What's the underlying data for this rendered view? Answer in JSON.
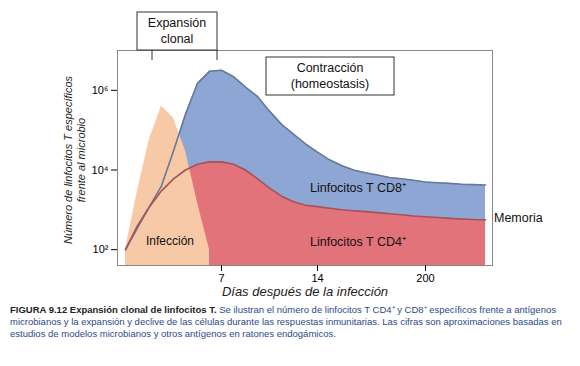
{
  "chart_data": {
    "type": "area",
    "x_label": "Días después de la infección",
    "y_label": [
      "Número de linfocitos T específicos",
      "frente al microbio"
    ],
    "categories": [
      null,
      null,
      null,
      null,
      null,
      null,
      null,
      null,
      "7",
      null,
      null,
      null,
      null,
      null,
      null,
      null,
      "14",
      null,
      null,
      null,
      null,
      null,
      null,
      null,
      null,
      "200",
      null,
      null,
      null,
      null,
      null
    ],
    "series": [
      {
        "name": "Linfocitos T CD8⁺",
        "color": "#8ea6d3",
        "values": [
          100,
          350,
          1200,
          4000,
          30000,
          250000,
          1500000,
          3000000,
          3200000,
          2200000,
          1200000,
          700000,
          300000,
          140000,
          80000,
          45000,
          28000,
          18000,
          13000,
          10000,
          8500,
          7500,
          6500,
          6000,
          5500,
          5000,
          4800,
          4600,
          4400,
          4300,
          4200
        ]
      },
      {
        "name": "Linfocitos T CD4⁺",
        "color": "#e3737a",
        "values": [
          100,
          400,
          1200,
          3000,
          6000,
          10000,
          14000,
          16000,
          16000,
          14000,
          10000,
          6000,
          3500,
          2200,
          1600,
          1300,
          1200,
          1100,
          1000,
          950,
          900,
          850,
          800,
          750,
          700,
          670,
          640,
          610,
          590,
          570,
          560
        ]
      },
      {
        "name": "Infección",
        "color": "#f7c9a6",
        "values": [
          100,
          3000,
          60000,
          400000,
          200000,
          30000,
          1500,
          100,
          null,
          null,
          null,
          null,
          null,
          null,
          null,
          null,
          null,
          null,
          null,
          null,
          null,
          null,
          null,
          null,
          null,
          null,
          null,
          null,
          null,
          null,
          null
        ]
      }
    ],
    "ylim": [
      40,
      10000000
    ],
    "yticks": [
      {
        "value": 100,
        "label": "10²"
      },
      {
        "value": 10000,
        "label": "10⁴"
      },
      {
        "value": 1000000,
        "label": "10⁶"
      }
    ],
    "log": "y",
    "grid": false,
    "annotations": [
      [
        "Expansión",
        "clonal"
      ],
      [
        "Contracción",
        "(homeostasis)"
      ],
      [
        "Memoria"
      ]
    ],
    "caption_title": "FIGURA 9.12 Expansión clonal de linfocitos T.",
    "caption": "Se ilustran el número de linfocitos T CD4⁺ y CD8⁺ específicos frente a antígenos microbianos y la expansión y declive de las células durante las respuestas inmunitarias. Las cifras son aproximaciones basadas en estudios de modelos microbianos y otros antígenos en ratones endogámicos."
  }
}
